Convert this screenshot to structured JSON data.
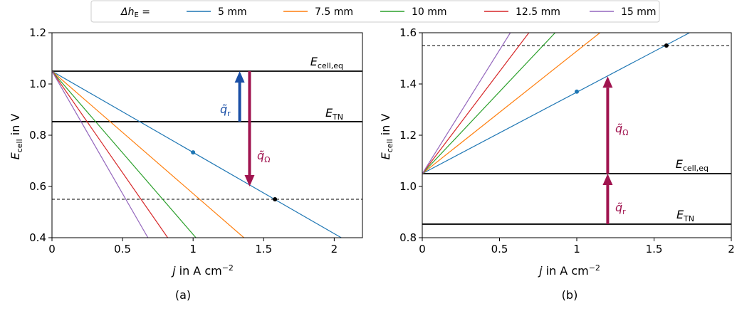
{
  "legend": {
    "title": "Δh_E =",
    "entries": [
      {
        "label": "5 mm",
        "color": "#1f77b4"
      },
      {
        "label": "7.5 mm",
        "color": "#ff7f0e"
      },
      {
        "label": "10 mm",
        "color": "#2ca02c"
      },
      {
        "label": "12.5 mm",
        "color": "#d62728"
      },
      {
        "label": "15 mm",
        "color": "#9467bd"
      }
    ]
  },
  "chart_data": [
    {
      "type": "line",
      "caption": "(a)",
      "xlabel": "j in A cm^-2",
      "ylabel": "E_cell in V",
      "xlim": [
        0,
        2.2
      ],
      "ylim": [
        0.4,
        1.2
      ],
      "xticks": [
        0,
        0.5,
        1,
        1.5,
        2
      ],
      "xtick_labels": [
        "0",
        "0.5",
        "1",
        "1.5",
        "2"
      ],
      "yticks": [
        0.4,
        0.6,
        0.8,
        1.0,
        1.2
      ],
      "ytick_labels": [
        "0.4",
        "0.6",
        "0.8",
        "1.0",
        "1.2"
      ],
      "series": [
        {
          "name": "5 mm",
          "color": "#1f77b4",
          "x": [
            0,
            2.05
          ],
          "y": [
            1.05,
            0.4
          ]
        },
        {
          "name": "7.5 mm",
          "color": "#ff7f0e",
          "x": [
            0,
            1.36
          ],
          "y": [
            1.05,
            0.4
          ]
        },
        {
          "name": "10 mm",
          "color": "#2ca02c",
          "x": [
            0,
            1.02
          ],
          "y": [
            1.05,
            0.4
          ]
        },
        {
          "name": "12.5 mm",
          "color": "#d62728",
          "x": [
            0,
            0.82
          ],
          "y": [
            1.05,
            0.4
          ]
        },
        {
          "name": "15 mm",
          "color": "#9467bd",
          "x": [
            0,
            0.68
          ],
          "y": [
            1.05,
            0.4
          ]
        }
      ],
      "hlines": [
        {
          "y": 1.05,
          "style": "solid",
          "label": "E_cell,eq"
        },
        {
          "y": 0.853,
          "style": "solid",
          "label": "E_TN"
        },
        {
          "y": 0.55,
          "style": "dashed",
          "label": ""
        }
      ],
      "points": [
        {
          "x": 1.0,
          "y": 0.733,
          "color": "#1f77b4"
        },
        {
          "x": 1.58,
          "y": 0.55,
          "color": "#000000"
        }
      ],
      "arrows": [
        {
          "x": 1.33,
          "y_from": 0.853,
          "y_to": 1.05,
          "color": "#1a4fa6",
          "label": "q̃_r"
        },
        {
          "x": 1.4,
          "y_from": 1.05,
          "y_to": 0.6,
          "color": "#a0144f",
          "label": "q̃_Ω"
        }
      ]
    },
    {
      "type": "line",
      "caption": "(b)",
      "xlabel": "j in A cm^-2",
      "ylabel": "E_cell in V",
      "xlim": [
        0,
        2
      ],
      "ylim": [
        0.8,
        1.6
      ],
      "xticks": [
        0,
        0.5,
        1,
        1.5,
        2
      ],
      "xtick_labels": [
        "0",
        "0.5",
        "1",
        "1.5",
        "2"
      ],
      "yticks": [
        0.8,
        1.0,
        1.2,
        1.4,
        1.6
      ],
      "ytick_labels": [
        "0.8",
        "1.0",
        "1.2",
        "1.4",
        "1.6"
      ],
      "series": [
        {
          "name": "5 mm",
          "color": "#1f77b4",
          "x": [
            0,
            1.73
          ],
          "y": [
            1.05,
            1.6
          ]
        },
        {
          "name": "7.5 mm",
          "color": "#ff7f0e",
          "x": [
            0,
            1.15
          ],
          "y": [
            1.05,
            1.6
          ]
        },
        {
          "name": "10 mm",
          "color": "#2ca02c",
          "x": [
            0,
            0.86
          ],
          "y": [
            1.05,
            1.6
          ]
        },
        {
          "name": "12.5 mm",
          "color": "#d62728",
          "x": [
            0,
            0.69
          ],
          "y": [
            1.05,
            1.6
          ]
        },
        {
          "name": "15 mm",
          "color": "#9467bd",
          "x": [
            0,
            0.57
          ],
          "y": [
            1.05,
            1.6
          ]
        }
      ],
      "hlines": [
        {
          "y": 1.05,
          "style": "solid",
          "label": "E_cell,eq"
        },
        {
          "y": 0.853,
          "style": "solid",
          "label": "E_TN"
        },
        {
          "y": 1.55,
          "style": "dashed",
          "label": ""
        }
      ],
      "points": [
        {
          "x": 1.0,
          "y": 1.37,
          "color": "#1f77b4"
        },
        {
          "x": 1.58,
          "y": 1.55,
          "color": "#000000"
        }
      ],
      "arrows": [
        {
          "x": 1.2,
          "y_from": 0.853,
          "y_to": 1.05,
          "color": "#a0144f",
          "label": "q̃_r"
        },
        {
          "x": 1.2,
          "y_from": 1.05,
          "y_to": 1.43,
          "color": "#a0144f",
          "label": "q̃_Ω"
        }
      ]
    }
  ]
}
